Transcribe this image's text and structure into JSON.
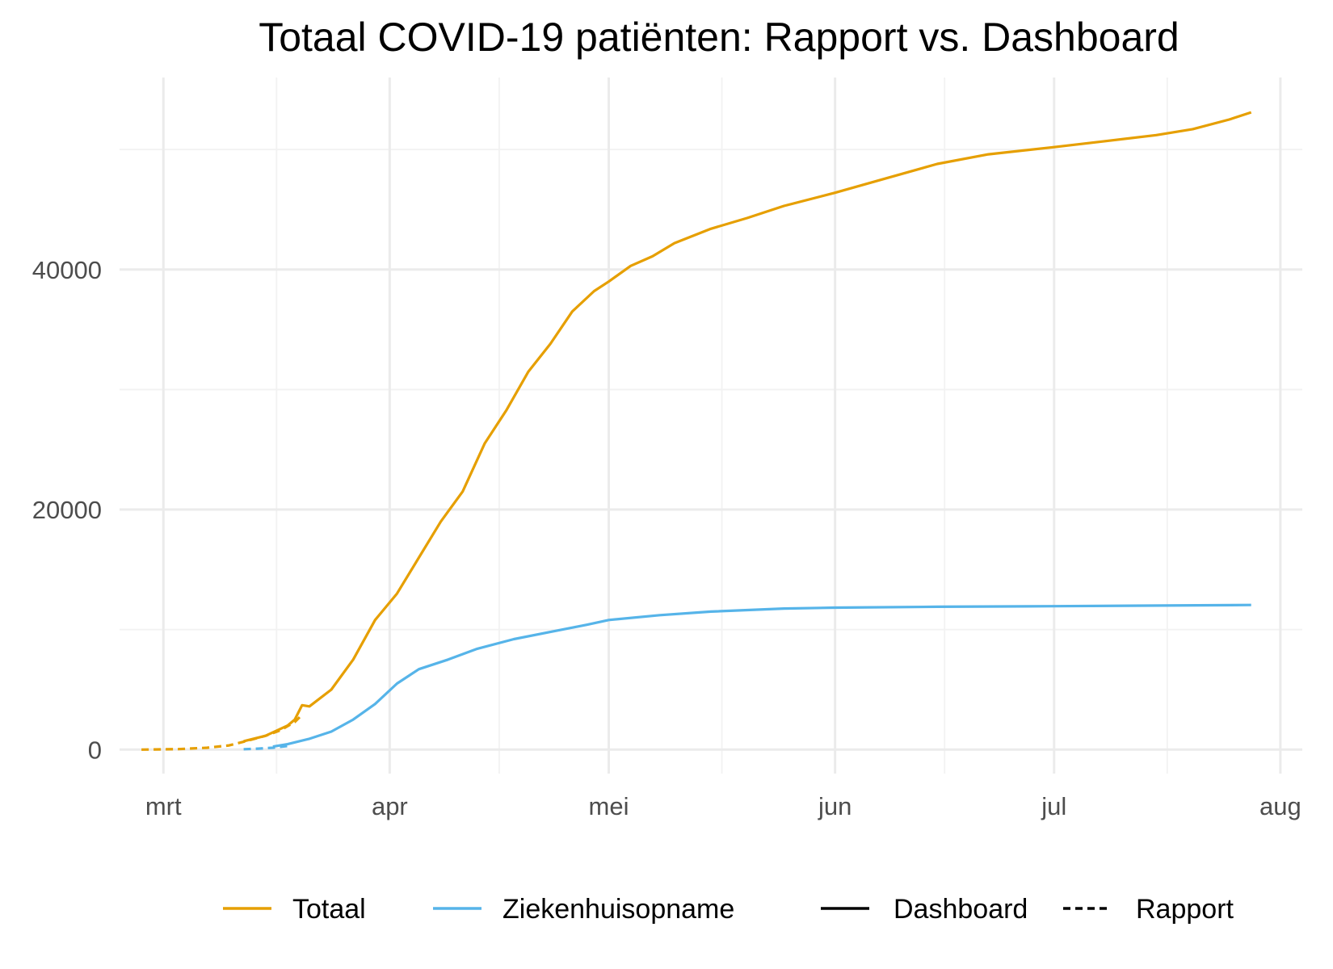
{
  "chart_data": {
    "type": "line",
    "title": "Totaal COVID-19 patiënten: Rapport vs. Dashboard",
    "xlabel": "",
    "ylabel": "",
    "x_axis": {
      "ticks": [
        {
          "label": "mrt",
          "date": "2020-03-01"
        },
        {
          "label": "apr",
          "date": "2020-04-01"
        },
        {
          "label": "mei",
          "date": "2020-05-01"
        },
        {
          "label": "jun",
          "date": "2020-06-01"
        },
        {
          "label": "jul",
          "date": "2020-07-01"
        },
        {
          "label": "aug",
          "date": "2020-08-01"
        }
      ],
      "range": [
        "2020-02-24",
        "2020-08-04"
      ]
    },
    "y_axis": {
      "ticks": [
        0,
        20000,
        40000
      ],
      "tick_labels": [
        "0",
        "20000",
        "40000"
      ],
      "range": [
        -2000,
        56000
      ]
    },
    "grid": true,
    "legend_position": "bottom",
    "series": [
      {
        "name": "Totaal",
        "color": "#E69F00",
        "source": "Rapport",
        "linestyle": "dashed",
        "points": [
          {
            "x": "2020-02-27",
            "y": 0
          },
          {
            "x": "2020-03-03",
            "y": 40
          },
          {
            "x": "2020-03-07",
            "y": 150
          },
          {
            "x": "2020-03-10",
            "y": 350
          },
          {
            "x": "2020-03-12",
            "y": 650
          },
          {
            "x": "2020-03-15",
            "y": 1150
          },
          {
            "x": "2020-03-17",
            "y": 1600
          },
          {
            "x": "2020-03-19",
            "y": 2300
          },
          {
            "x": "2020-03-20",
            "y": 2900
          }
        ]
      },
      {
        "name": "Totaal",
        "color": "#E69F00",
        "source": "Dashboard",
        "linestyle": "solid",
        "points": [
          {
            "x": "2020-03-12",
            "y": 700
          },
          {
            "x": "2020-03-15",
            "y": 1150
          },
          {
            "x": "2020-03-18",
            "y": 2000
          },
          {
            "x": "2020-03-19",
            "y": 2500
          },
          {
            "x": "2020-03-20",
            "y": 3700
          },
          {
            "x": "2020-03-21",
            "y": 3600
          },
          {
            "x": "2020-03-24",
            "y": 5000
          },
          {
            "x": "2020-03-27",
            "y": 7500
          },
          {
            "x": "2020-03-30",
            "y": 10800
          },
          {
            "x": "2020-04-02",
            "y": 13000
          },
          {
            "x": "2020-04-05",
            "y": 16000
          },
          {
            "x": "2020-04-08",
            "y": 19000
          },
          {
            "x": "2020-04-11",
            "y": 21500
          },
          {
            "x": "2020-04-14",
            "y": 25500
          },
          {
            "x": "2020-04-17",
            "y": 28300
          },
          {
            "x": "2020-04-20",
            "y": 31500
          },
          {
            "x": "2020-04-23",
            "y": 33800
          },
          {
            "x": "2020-04-26",
            "y": 36500
          },
          {
            "x": "2020-04-29",
            "y": 38200
          },
          {
            "x": "2020-05-01",
            "y": 39000
          },
          {
            "x": "2020-05-04",
            "y": 40300
          },
          {
            "x": "2020-05-07",
            "y": 41100
          },
          {
            "x": "2020-05-10",
            "y": 42200
          },
          {
            "x": "2020-05-15",
            "y": 43400
          },
          {
            "x": "2020-05-20",
            "y": 44300
          },
          {
            "x": "2020-05-25",
            "y": 45300
          },
          {
            "x": "2020-06-01",
            "y": 46400
          },
          {
            "x": "2020-06-08",
            "y": 47600
          },
          {
            "x": "2020-06-15",
            "y": 48800
          },
          {
            "x": "2020-06-22",
            "y": 49600
          },
          {
            "x": "2020-07-01",
            "y": 50200
          },
          {
            "x": "2020-07-08",
            "y": 50700
          },
          {
            "x": "2020-07-15",
            "y": 51200
          },
          {
            "x": "2020-07-20",
            "y": 51700
          },
          {
            "x": "2020-07-25",
            "y": 52500
          },
          {
            "x": "2020-07-28",
            "y": 53100
          }
        ]
      },
      {
        "name": "Ziekenhuisopname",
        "color": "#56B4E9",
        "source": "Rapport",
        "linestyle": "dashed",
        "points": [
          {
            "x": "2020-03-12",
            "y": 30
          },
          {
            "x": "2020-03-14",
            "y": 80
          },
          {
            "x": "2020-03-16",
            "y": 150
          },
          {
            "x": "2020-03-18",
            "y": 300
          }
        ]
      },
      {
        "name": "Ziekenhuisopname",
        "color": "#56B4E9",
        "source": "Dashboard",
        "linestyle": "solid",
        "points": [
          {
            "x": "2020-03-16",
            "y": 250
          },
          {
            "x": "2020-03-18",
            "y": 450
          },
          {
            "x": "2020-03-21",
            "y": 900
          },
          {
            "x": "2020-03-24",
            "y": 1500
          },
          {
            "x": "2020-03-27",
            "y": 2500
          },
          {
            "x": "2020-03-30",
            "y": 3800
          },
          {
            "x": "2020-04-02",
            "y": 5500
          },
          {
            "x": "2020-04-05",
            "y": 6700
          },
          {
            "x": "2020-04-09",
            "y": 7500
          },
          {
            "x": "2020-04-13",
            "y": 8400
          },
          {
            "x": "2020-04-18",
            "y": 9200
          },
          {
            "x": "2020-04-23",
            "y": 9800
          },
          {
            "x": "2020-04-28",
            "y": 10400
          },
          {
            "x": "2020-05-01",
            "y": 10800
          },
          {
            "x": "2020-05-08",
            "y": 11200
          },
          {
            "x": "2020-05-15",
            "y": 11500
          },
          {
            "x": "2020-05-25",
            "y": 11750
          },
          {
            "x": "2020-06-01",
            "y": 11830
          },
          {
            "x": "2020-06-15",
            "y": 11900
          },
          {
            "x": "2020-07-01",
            "y": 11950
          },
          {
            "x": "2020-07-28",
            "y": 12050
          }
        ]
      }
    ],
    "legend": {
      "colour": [
        {
          "label": "Totaal",
          "color": "#E69F00"
        },
        {
          "label": "Ziekenhuisopname",
          "color": "#56B4E9"
        }
      ],
      "linetype": [
        {
          "label": "Dashboard",
          "linestyle": "solid"
        },
        {
          "label": "Rapport",
          "linestyle": "dashed"
        }
      ]
    }
  }
}
